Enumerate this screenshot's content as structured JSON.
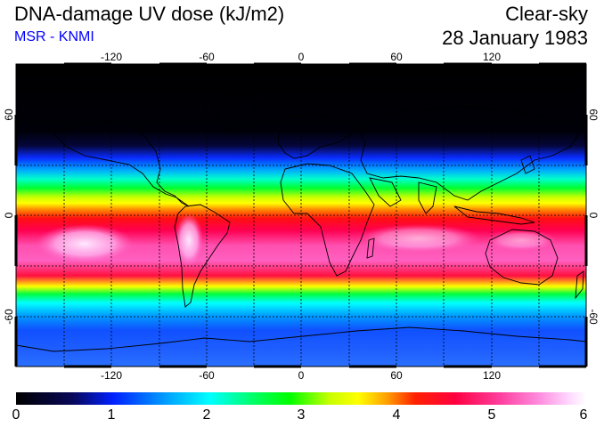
{
  "header": {
    "title": "DNA-damage UV dose (kJ/m2)",
    "source": "MSR - KNMI",
    "condition": "Clear-sky",
    "date": "28 January 1983"
  },
  "map": {
    "lon_ticks": [
      "-120",
      "-60",
      "0",
      "60",
      "120"
    ],
    "lat_ticks_left": [
      "60",
      "0",
      "-60"
    ],
    "lat_ticks_right": [
      "60",
      "0",
      "-60"
    ]
  },
  "colorbar": {
    "labels": [
      "0",
      "1",
      "2",
      "3",
      "4",
      "5",
      "6"
    ],
    "min": 0,
    "max": 6,
    "colors": [
      "#000000",
      "#08085a",
      "#0020ff",
      "#00a8ff",
      "#00ffff",
      "#00ff60",
      "#00ff00",
      "#c8ff00",
      "#ffff00",
      "#ffa000",
      "#ff2000",
      "#ff0040",
      "#ff40a0",
      "#ff90e0",
      "#ffd8ff",
      "#ffffff"
    ]
  }
}
